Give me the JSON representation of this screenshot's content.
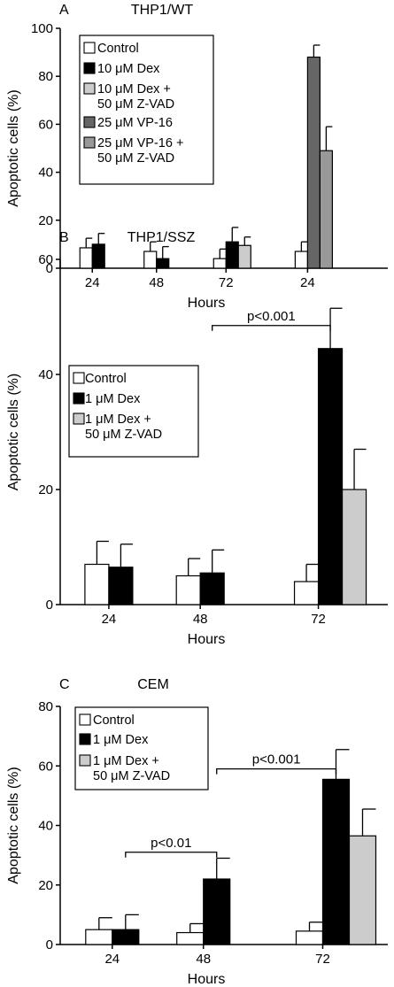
{
  "figure": {
    "colors": {
      "control": "#ffffff",
      "dex": "#000000",
      "dex_zvad": "#cccccc",
      "vp16": "#666666",
      "vp16_zvad": "#999999",
      "stroke": "#000000"
    }
  },
  "chart_data": [
    {
      "panel": "A",
      "type": "bar",
      "title": "THP1/WT",
      "xlabel": "Hours",
      "ylabel": "Apoptotic cells (%)",
      "ylim": [
        0,
        100
      ],
      "yticks": [
        0,
        20,
        40,
        60,
        80,
        100
      ],
      "legend_position": "top-left",
      "groups": [
        {
          "label": "24",
          "bars": [
            {
              "series": "Control",
              "value": 8.5,
              "error": 4
            },
            {
              "series": "10 μM Dex",
              "value": 10,
              "error": 4.5
            }
          ]
        },
        {
          "label": "48",
          "bars": [
            {
              "series": "Control",
              "value": 7,
              "error": 4
            },
            {
              "series": "10 μM Dex",
              "value": 4,
              "error": 5
            }
          ]
        },
        {
          "label": "72",
          "bars": [
            {
              "series": "Control",
              "value": 4,
              "error": 4
            },
            {
              "series": "10 μM Dex",
              "value": 11,
              "error": 6
            },
            {
              "series": "10 μM Dex + 50 μM Z-VAD",
              "value": 9.5,
              "error": 3.5
            }
          ]
        },
        {
          "label": "24",
          "bars": [
            {
              "series": "Control",
              "value": 7,
              "error": 4
            },
            {
              "series": "25 μM VP-16",
              "value": 88,
              "error": 5
            },
            {
              "series": "25 μM VP-16 + 50 μM Z-VAD",
              "value": 49,
              "error": 10
            }
          ]
        }
      ],
      "legend": [
        {
          "series": "Control",
          "lines": [
            "Control"
          ]
        },
        {
          "series": "10 μM Dex",
          "lines": [
            "10 μM Dex"
          ]
        },
        {
          "series": "10 μM Dex + 50 μM Z-VAD",
          "lines": [
            "10 μM Dex +",
            "50 μM Z-VAD"
          ]
        },
        {
          "series": "25 μM VP-16",
          "lines": [
            "25 μM VP-16"
          ]
        },
        {
          "series": "25 μM VP-16 + 50 μM Z-VAD",
          "lines": [
            "25 μM VP-16 +",
            "50 μM Z-VAD"
          ]
        }
      ],
      "annotations": []
    },
    {
      "panel": "B",
      "type": "bar",
      "title": "THP1/SSZ",
      "xlabel": "Hours",
      "ylabel": "Apoptotic cells (%)",
      "ylim": [
        0,
        60
      ],
      "yticks": [
        0,
        20,
        40,
        60
      ],
      "legend_position": "top-left",
      "groups": [
        {
          "label": "24",
          "bars": [
            {
              "series": "Control",
              "value": 7,
              "error": 4
            },
            {
              "series": "1 μM Dex",
              "value": 6.5,
              "error": 4
            }
          ]
        },
        {
          "label": "48",
          "bars": [
            {
              "series": "Control",
              "value": 5,
              "error": 3
            },
            {
              "series": "1 μM Dex",
              "value": 5.5,
              "error": 4
            }
          ]
        },
        {
          "label": "72",
          "bars": [
            {
              "series": "Control",
              "value": 4,
              "error": 3
            },
            {
              "series": "1 μM Dex",
              "value": 44.5,
              "error": 7
            },
            {
              "series": "1 μM Dex + 50 μM Z-VAD",
              "value": 20,
              "error": 7
            }
          ]
        }
      ],
      "legend": [
        {
          "series": "Control",
          "lines": [
            "Control"
          ]
        },
        {
          "series": "1 μM Dex",
          "lines": [
            "1 μM Dex"
          ]
        },
        {
          "series": "1 μM Dex + 50 μM Z-VAD",
          "lines": [
            "1 μM Dex +",
            "50 μM Z-VAD"
          ]
        }
      ],
      "annotations": [
        {
          "text": "p<0.001",
          "from": {
            "group": 1,
            "bar": 1
          },
          "to": {
            "group": 2,
            "bar": 1
          },
          "y": 48.5
        }
      ]
    },
    {
      "panel": "C",
      "type": "bar",
      "title": "CEM",
      "xlabel": "Hours",
      "ylabel": "Apoptotic cells (%)",
      "ylim": [
        0,
        80
      ],
      "yticks": [
        0,
        20,
        40,
        60,
        80
      ],
      "legend_position": "top-left",
      "groups": [
        {
          "label": "24",
          "bars": [
            {
              "series": "Control",
              "value": 5,
              "error": 4
            },
            {
              "series": "1 μM Dex",
              "value": 5,
              "error": 5
            }
          ]
        },
        {
          "label": "48",
          "bars": [
            {
              "series": "Control",
              "value": 4,
              "error": 3
            },
            {
              "series": "1 μM Dex",
              "value": 22,
              "error": 7
            }
          ]
        },
        {
          "label": "72",
          "bars": [
            {
              "series": "Control",
              "value": 4.5,
              "error": 3
            },
            {
              "series": "1 μM Dex",
              "value": 55.5,
              "error": 10
            },
            {
              "series": "1 μM Dex + 50 μM Z-VAD",
              "value": 36.5,
              "error": 9
            }
          ]
        }
      ],
      "legend": [
        {
          "series": "Control",
          "lines": [
            "Control"
          ]
        },
        {
          "series": "1 μM Dex",
          "lines": [
            "1 μM Dex"
          ]
        },
        {
          "series": "1 μM Dex + 50 μM Z-VAD",
          "lines": [
            "1 μM Dex +",
            "50 μM Z-VAD"
          ]
        }
      ],
      "annotations": [
        {
          "text": "p<0.01",
          "from": {
            "group": 0,
            "bar": 1
          },
          "to": {
            "group": 1,
            "bar": 1
          },
          "y": 31
        },
        {
          "text": "p<0.001",
          "from": {
            "group": 1,
            "bar": 1
          },
          "to": {
            "group": 2,
            "bar": 1
          },
          "y": 59
        }
      ]
    }
  ]
}
